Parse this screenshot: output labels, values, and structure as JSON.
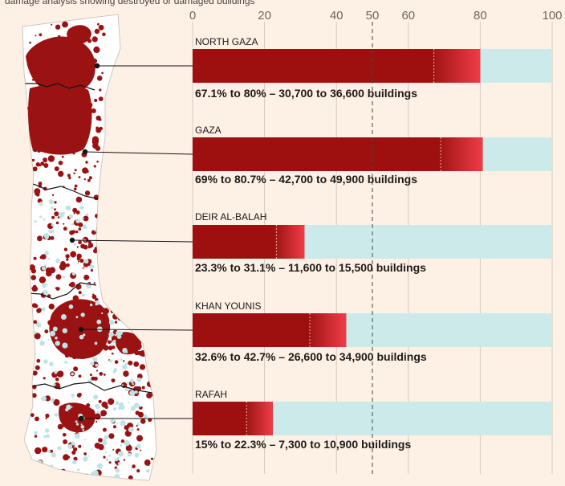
{
  "intro_fragment": "damage analysis showing destroyed or damaged buildings",
  "chart_data": {
    "type": "bar",
    "orientation": "horizontal",
    "xlim": [
      0,
      100
    ],
    "x_ticks": [
      0,
      20,
      40,
      50,
      60,
      80,
      100
    ],
    "reference_line": 50,
    "colors": {
      "damaged": "#9e1010",
      "range_start": "#a01515",
      "range_end": "#ee3d48",
      "remaining": "#cdeaea",
      "gridline": "#d6cbc1",
      "reference": "#4a4541",
      "map_land": "#ffffff",
      "map_damage": "#9b1212",
      "map_water": "#bfe4e6"
    },
    "regions": [
      {
        "name": "NORTH GAZA",
        "low": 67.1,
        "high": 80,
        "label": "67.1% to 80% – 30,700 to 36,600 buildings"
      },
      {
        "name": "GAZA",
        "low": 69,
        "high": 80.7,
        "label": "69% to 80.7% – 42,700 to 49,900 buildings"
      },
      {
        "name": "DEIR AL-BALAH",
        "low": 23.3,
        "high": 31.1,
        "label": "23.3% to 31.1% – 11,600 to 15,500 buildings"
      },
      {
        "name": "KHAN YOUNIS",
        "low": 32.6,
        "high": 42.7,
        "label": "32.6% to 42.7% – 26,600 to 34,900 buildings"
      },
      {
        "name": "RAFAH",
        "low": 15,
        "high": 22.3,
        "label": "15% to 22.3% – 7,300 to 10,900 buildings"
      }
    ]
  }
}
